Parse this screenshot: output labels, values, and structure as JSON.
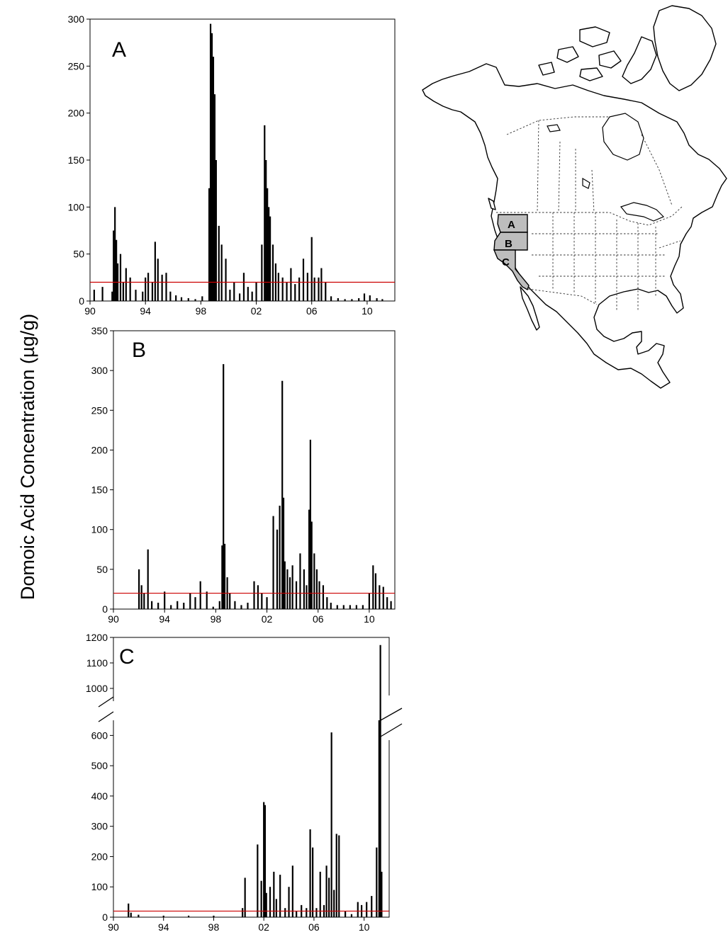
{
  "ylabel": "Domoic Acid Concentration (µg/g)",
  "threshold_color": "#cc0000",
  "bar_color": "#000000",
  "map": {
    "labels": [
      "A",
      "B",
      "C"
    ],
    "highlight_color": "#bdbdbd",
    "title": ""
  },
  "chart_data": [
    {
      "type": "bar",
      "panel_label": "A",
      "x_ticks": [
        {
          "value": 1990,
          "label": "90"
        },
        {
          "value": 1994,
          "label": "94"
        },
        {
          "value": 1998,
          "label": "98"
        },
        {
          "value": 2002,
          "label": "02"
        },
        {
          "value": 2006,
          "label": "06"
        },
        {
          "value": 2010,
          "label": "10"
        }
      ],
      "y_ticks": [
        0,
        50,
        100,
        150,
        200,
        250,
        300
      ],
      "xlim": [
        1990,
        2012
      ],
      "ylim": [
        0,
        300
      ],
      "threshold": 20,
      "x": [
        1990.3,
        1990.9,
        1991.6,
        1991.7,
        1991.8,
        1991.9,
        1992.0,
        1992.2,
        1992.4,
        1992.6,
        1992.9,
        1993.3,
        1993.8,
        1994.0,
        1994.2,
        1994.5,
        1994.7,
        1994.9,
        1995.2,
        1995.5,
        1995.8,
        1996.2,
        1996.6,
        1997.1,
        1997.6,
        1998.1,
        1998.6,
        1998.7,
        1998.8,
        1998.9,
        1999.0,
        1999.1,
        1999.3,
        1999.5,
        1999.8,
        2000.1,
        2000.4,
        2000.8,
        2001.1,
        2001.4,
        2001.7,
        2002.0,
        2002.4,
        2002.6,
        2002.7,
        2002.8,
        2002.9,
        2003.0,
        2003.2,
        2003.4,
        2003.6,
        2003.9,
        2004.2,
        2004.5,
        2004.8,
        2005.1,
        2005.4,
        2005.7,
        2006.0,
        2006.2,
        2006.5,
        2006.7,
        2007.0,
        2007.4,
        2007.9,
        2008.4,
        2008.9,
        2009.4,
        2009.8,
        2010.2,
        2010.7,
        2011.1
      ],
      "values": [
        12,
        15,
        10,
        75,
        100,
        65,
        40,
        50,
        20,
        35,
        25,
        12,
        10,
        25,
        30,
        20,
        63,
        45,
        28,
        30,
        10,
        6,
        4,
        3,
        2,
        5,
        120,
        295,
        285,
        260,
        220,
        150,
        80,
        60,
        45,
        12,
        20,
        8,
        30,
        15,
        10,
        20,
        60,
        187,
        150,
        120,
        100,
        90,
        60,
        40,
        30,
        25,
        20,
        35,
        18,
        25,
        45,
        30,
        68,
        25,
        25,
        35,
        20,
        5,
        3,
        2,
        2,
        3,
        8,
        6,
        3,
        2
      ]
    },
    {
      "type": "bar",
      "panel_label": "B",
      "x_ticks": [
        {
          "value": 1990,
          "label": "90"
        },
        {
          "value": 1994,
          "label": "94"
        },
        {
          "value": 1998,
          "label": "98"
        },
        {
          "value": 2002,
          "label": "02"
        },
        {
          "value": 2006,
          "label": "06"
        },
        {
          "value": 2010,
          "label": "10"
        }
      ],
      "y_ticks": [
        0,
        50,
        100,
        150,
        200,
        250,
        300,
        350
      ],
      "xlim": [
        1990,
        2012
      ],
      "ylim": [
        0,
        350
      ],
      "threshold": 20,
      "x": [
        1992.0,
        1992.2,
        1992.4,
        1992.7,
        1993.0,
        1993.5,
        1994.0,
        1994.5,
        1995.0,
        1995.5,
        1996.0,
        1996.4,
        1996.8,
        1997.3,
        1997.8,
        1998.3,
        1998.5,
        1998.6,
        1998.7,
        1998.9,
        1999.1,
        1999.5,
        2000.0,
        2000.5,
        2001.0,
        2001.3,
        2001.6,
        2002.0,
        2002.5,
        2002.8,
        2003.0,
        2003.2,
        2003.3,
        2003.4,
        2003.6,
        2003.8,
        2004.0,
        2004.3,
        2004.6,
        2004.9,
        2005.1,
        2005.3,
        2005.4,
        2005.5,
        2005.7,
        2005.9,
        2006.1,
        2006.4,
        2006.7,
        2007.0,
        2007.5,
        2008.0,
        2008.5,
        2009.0,
        2009.5,
        2010.0,
        2010.3,
        2010.5,
        2010.8,
        2011.1,
        2011.4,
        2011.7
      ],
      "values": [
        50,
        30,
        20,
        75,
        10,
        8,
        22,
        5,
        10,
        8,
        20,
        15,
        35,
        22,
        3,
        10,
        80,
        308,
        82,
        40,
        20,
        10,
        5,
        8,
        35,
        30,
        20,
        15,
        117,
        100,
        130,
        287,
        140,
        60,
        50,
        40,
        55,
        35,
        70,
        50,
        30,
        125,
        213,
        110,
        70,
        50,
        35,
        30,
        15,
        8,
        5,
        5,
        5,
        5,
        5,
        20,
        55,
        45,
        30,
        28,
        15,
        10
      ]
    },
    {
      "type": "bar",
      "panel_label": "C",
      "x_ticks": [
        {
          "value": 1990,
          "label": "90"
        },
        {
          "value": 1994,
          "label": "94"
        },
        {
          "value": 1998,
          "label": "98"
        },
        {
          "value": 2002,
          "label": "02"
        },
        {
          "value": 2006,
          "label": "06"
        },
        {
          "value": 2010,
          "label": "10"
        }
      ],
      "y_ticks_lower": [
        0,
        100,
        200,
        300,
        400,
        500,
        600
      ],
      "y_ticks_upper": [
        1000,
        1100,
        1200
      ],
      "xlim": [
        1990,
        2012
      ],
      "ylim_lower": [
        0,
        650
      ],
      "ylim_upper": [
        950,
        1200
      ],
      "axis_break": true,
      "threshold": 20,
      "x": [
        1991.2,
        1991.4,
        1992.0,
        1994.0,
        1996.0,
        1998.0,
        2000.3,
        2000.5,
        2001.5,
        2001.8,
        2002.0,
        2002.1,
        2002.2,
        2002.5,
        2002.8,
        2003.0,
        2003.3,
        2003.7,
        2004.0,
        2004.3,
        2004.6,
        2005.0,
        2005.4,
        2005.7,
        2005.9,
        2006.2,
        2006.5,
        2006.8,
        2007.0,
        2007.2,
        2007.4,
        2007.6,
        2007.8,
        2008.0,
        2008.5,
        2009.0,
        2009.5,
        2009.8,
        2010.2,
        2010.6,
        2011.0,
        2011.2,
        2011.3,
        2011.4
      ],
      "values": [
        45,
        15,
        8,
        5,
        5,
        5,
        30,
        130,
        240,
        120,
        380,
        370,
        80,
        100,
        150,
        60,
        140,
        30,
        100,
        170,
        20,
        40,
        30,
        290,
        230,
        30,
        150,
        40,
        170,
        130,
        610,
        90,
        275,
        270,
        20,
        10,
        50,
        40,
        50,
        70,
        230,
        650,
        1170,
        150
      ]
    }
  ]
}
